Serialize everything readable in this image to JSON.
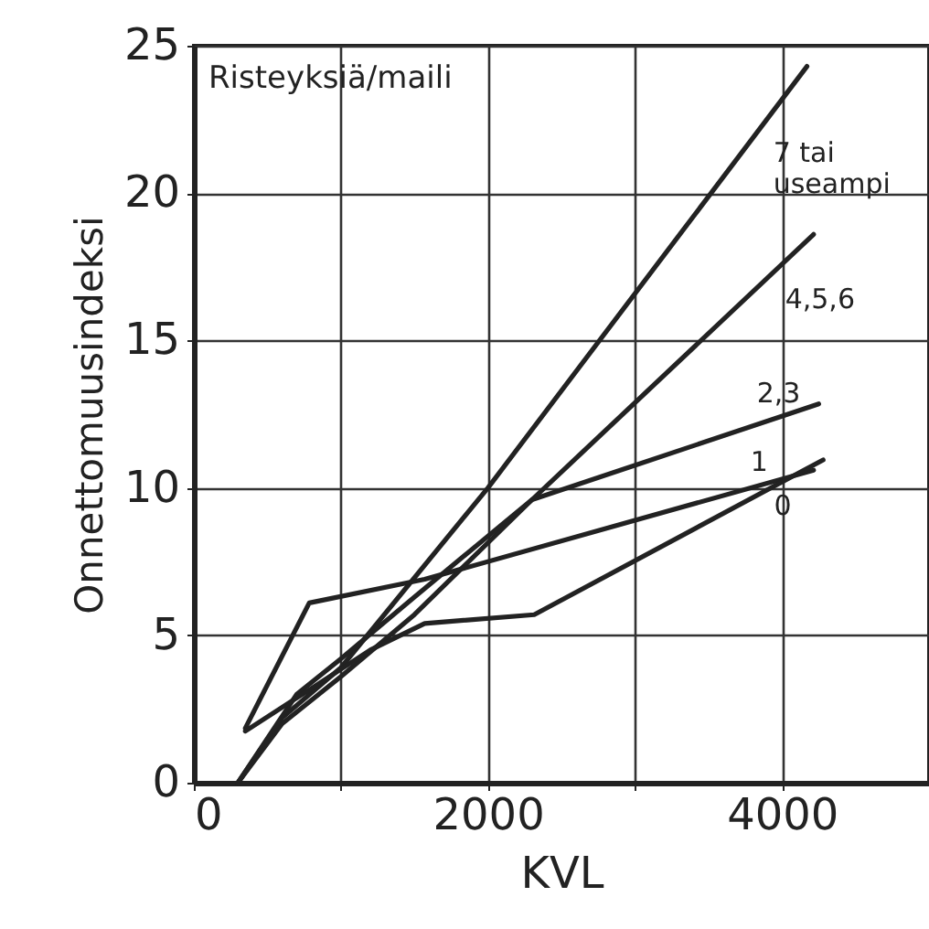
{
  "chart_data": {
    "type": "line",
    "xlabel": "KVL",
    "ylabel": "Onnettomuusindeksi",
    "annotations": [
      "Risteyksiä/maili"
    ],
    "xlim": [
      0,
      5000
    ],
    "xticks": [
      0,
      {
        "value": 1000,
        "label": null
      },
      2000,
      {
        "value": 3000,
        "label": null
      },
      4000
    ],
    "ylim": [
      0,
      25
    ],
    "yticks": [
      0,
      5,
      10,
      15,
      20,
      25
    ],
    "grid": true,
    "legend": false,
    "line_style": "solid",
    "series": [
      {
        "name": "7 tai useampi",
        "color": "#222222",
        "x": [
          300,
          600,
          1000,
          2000,
          4170
        ],
        "values": [
          0,
          2.2,
          3.9,
          10,
          24.3
        ]
      },
      {
        "name": "4,5,6",
        "color": "#222222",
        "x": [
          300,
          600,
          1000,
          1500,
          2300,
          4215
        ],
        "values": [
          0,
          2,
          3.6,
          5.7,
          9.6,
          18.6
        ]
      },
      {
        "name": "2,3",
        "color": "#222222",
        "x": [
          300,
          700,
          1000,
          1500,
          2300,
          4250
        ],
        "values": [
          0,
          3,
          4.2,
          6.3,
          9.6,
          12.85
        ]
      },
      {
        "name": "1",
        "color": "#222222",
        "x": [
          350,
          785,
          1570,
          4215
        ],
        "values": [
          1.85,
          6.1,
          6.9,
          10.6
        ]
      },
      {
        "name": "0",
        "color": "#222222",
        "x": [
          350,
          800,
          1200,
          1570,
          2315,
          4280
        ],
        "values": [
          1.75,
          3.2,
          4.5,
          5.4,
          5.7,
          10.95
        ]
      }
    ]
  }
}
